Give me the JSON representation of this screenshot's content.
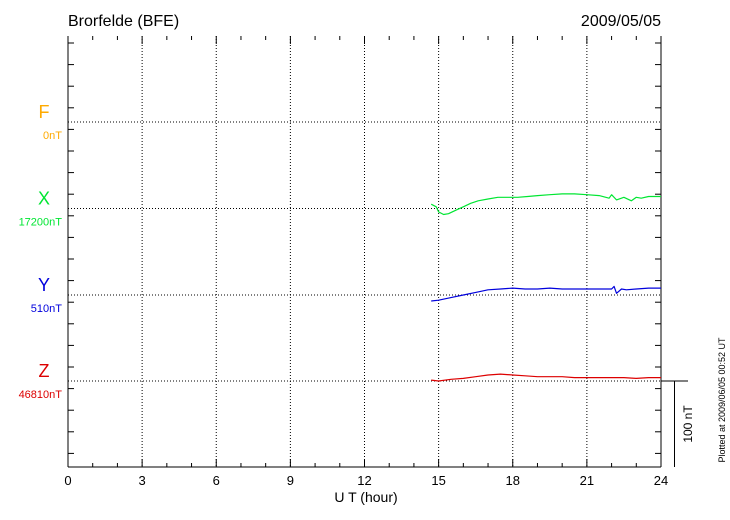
{
  "chart_data": {
    "type": "line",
    "title": "Brorfelde (BFE)",
    "date": "2009/05/05",
    "xlabel": "U T (hour)",
    "xlim": [
      0,
      24
    ],
    "xticks": [
      "0",
      "3",
      "6",
      "9",
      "12",
      "15",
      "18",
      "21",
      "24"
    ],
    "grid": true,
    "plotted_note": "Plotted at 2009/06/05 00:52 UT",
    "scale_label": "100 nT",
    "scale_nT": 100,
    "series": [
      {
        "name": "F",
        "base_label": "0nT",
        "color": "#ffaa00",
        "x": [],
        "y": []
      },
      {
        "name": "X",
        "base_label": "17200nT",
        "color": "#00e632",
        "x": [
          14.7,
          14.9,
          15.0,
          15.2,
          15.4,
          15.7,
          16.0,
          16.3,
          16.6,
          17.0,
          17.4,
          17.8,
          18.2,
          18.6,
          19.0,
          19.5,
          20.0,
          20.5,
          21.0,
          21.5,
          21.9,
          22.0,
          22.2,
          22.5,
          22.8,
          23.0,
          23.2,
          23.5,
          23.8,
          24.0
        ],
        "y": [
          5,
          2,
          -4,
          -7,
          -6,
          -2,
          2,
          6,
          9,
          11,
          13,
          13,
          13,
          14,
          15,
          16,
          17,
          17,
          16,
          15,
          12,
          16,
          10,
          13,
          9,
          13,
          12,
          14,
          14,
          14
        ]
      },
      {
        "name": "Y",
        "base_label": "510nT",
        "color": "#0000dd",
        "x": [
          14.7,
          15.0,
          15.5,
          16.0,
          16.5,
          17.0,
          17.5,
          18.0,
          18.5,
          19.0,
          19.5,
          20.0,
          20.5,
          21.0,
          21.5,
          22.0,
          22.1,
          22.2,
          22.4,
          22.6,
          23.0,
          23.5,
          24.0
        ],
        "y": [
          -7,
          -6,
          -3,
          0,
          3,
          6,
          7,
          8,
          7,
          7,
          8,
          7,
          7,
          7,
          7,
          7,
          10,
          2,
          7,
          6,
          7,
          8,
          8
        ]
      },
      {
        "name": "Z",
        "base_label": "46810nT",
        "color": "#dd0000",
        "x": [
          14.7,
          15.0,
          15.5,
          16.0,
          16.5,
          17.0,
          17.5,
          18.0,
          18.5,
          19.0,
          19.5,
          20.0,
          20.5,
          21.0,
          21.5,
          22.0,
          22.5,
          23.0,
          23.5,
          24.0
        ],
        "y": [
          1,
          0,
          2,
          3,
          5,
          7,
          8,
          7,
          6,
          5,
          5,
          5,
          4,
          4,
          4,
          4,
          4,
          3,
          4,
          4
        ]
      }
    ]
  }
}
